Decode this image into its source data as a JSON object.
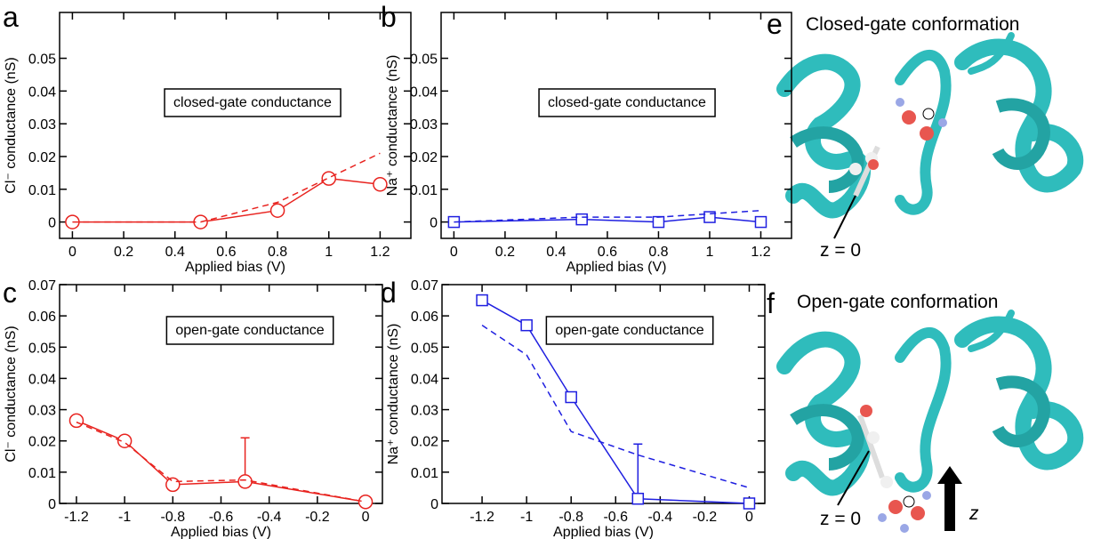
{
  "chart_data": [
    {
      "type": "line",
      "panel": "a",
      "xlabel": "Applied bias (V)",
      "ylabel": "Cl⁻ conductance (nS)",
      "annotation": "closed-gate conductance",
      "xlim": [
        -0.05,
        1.32
      ],
      "ylim": [
        -0.005,
        0.064
      ],
      "xticks": [
        0,
        0.2,
        0.4,
        0.6,
        0.8,
        1,
        1.2
      ],
      "yticks": [
        0,
        0.01,
        0.02,
        0.03,
        0.04,
        0.05
      ],
      "series": [
        {
          "color": "#e8231f",
          "dashed": false,
          "marker": "circle",
          "x": [
            0,
            0.5,
            0.8,
            1,
            1.2
          ],
          "values": [
            0,
            0,
            0.0035,
            0.0133,
            0.0115
          ]
        },
        {
          "color": "#e8231f",
          "dashed": true,
          "marker": null,
          "x": [
            0,
            0.5,
            0.8,
            1.2
          ],
          "values": [
            0,
            0,
            0.006,
            0.021
          ]
        }
      ]
    },
    {
      "type": "line",
      "panel": "b",
      "xlabel": "Applied bias (V)",
      "ylabel": "Na⁺ conductance (nS)",
      "annotation": "closed-gate conductance",
      "xlim": [
        -0.05,
        1.32
      ],
      "ylim": [
        -0.005,
        0.064
      ],
      "xticks": [
        0,
        0.2,
        0.4,
        0.6,
        0.8,
        1,
        1.2
      ],
      "yticks": [
        0,
        0.01,
        0.02,
        0.03,
        0.04,
        0.05
      ],
      "series": [
        {
          "color": "#1f1fe0",
          "dashed": false,
          "marker": "square",
          "x": [
            0,
            0.5,
            0.8,
            1,
            1.2
          ],
          "values": [
            0,
            0.0008,
            0,
            0.0015,
            0
          ]
        },
        {
          "color": "#1f1fe0",
          "dashed": true,
          "marker": null,
          "x": [
            0,
            0.5,
            0.8,
            1,
            1.2
          ],
          "values": [
            0,
            0.0015,
            0.0015,
            0.0025,
            0.0035
          ]
        }
      ]
    },
    {
      "type": "line",
      "panel": "c",
      "xlabel": "Applied bias (V)",
      "ylabel": "Cl⁻ conductance (nS)",
      "annotation": "open-gate conductance",
      "xlim": [
        -1.27,
        0.07
      ],
      "ylim": [
        0,
        0.07
      ],
      "xticks": [
        -1.2,
        -1,
        -0.8,
        -0.6,
        -0.4,
        -0.2,
        0
      ],
      "yticks": [
        0,
        0.01,
        0.02,
        0.03,
        0.04,
        0.05,
        0.06,
        0.07
      ],
      "series": [
        {
          "color": "#e8231f",
          "dashed": false,
          "marker": "circle",
          "x": [
            -1.2,
            -1,
            -0.8,
            -0.5,
            0
          ],
          "values": [
            0.0265,
            0.02,
            0.006,
            0.007,
            0.0005
          ],
          "errors": [
            null,
            null,
            null,
            0.014,
            null
          ]
        },
        {
          "color": "#e8231f",
          "dashed": true,
          "marker": null,
          "x": [
            -1.2,
            -1,
            -0.8,
            -0.5,
            0
          ],
          "values": [
            0.026,
            0.0195,
            0.007,
            0.0075,
            0.0005
          ]
        }
      ]
    },
    {
      "type": "line",
      "panel": "d",
      "xlabel": "Applied bias (V)",
      "ylabel": "Na⁺ conductance (nS)",
      "annotation": "open-gate conductance",
      "xlim": [
        -1.38,
        0.07
      ],
      "ylim": [
        0,
        0.07
      ],
      "xticks": [
        -1.2,
        -1,
        -0.8,
        -0.6,
        -0.4,
        -0.2,
        0
      ],
      "yticks": [
        0,
        0.01,
        0.02,
        0.03,
        0.04,
        0.05,
        0.06,
        0.07
      ],
      "series": [
        {
          "color": "#1f1fe0",
          "dashed": false,
          "marker": "square",
          "x": [
            -1.2,
            -1,
            -0.8,
            -0.5,
            0
          ],
          "values": [
            0.065,
            0.057,
            0.034,
            0.0015,
            0
          ],
          "errors": [
            null,
            null,
            null,
            0.0175,
            null
          ]
        },
        {
          "color": "#1f1fe0",
          "dashed": true,
          "marker": null,
          "x": [
            -1.2,
            -1,
            -0.8,
            -0.5,
            0
          ],
          "values": [
            0.057,
            0.0475,
            0.023,
            0.0155,
            0.005
          ]
        }
      ]
    }
  ],
  "images": [
    {
      "panel": "e",
      "title": "Closed-gate conformation",
      "z_label": "z = 0"
    },
    {
      "panel": "f",
      "title": "Open-gate conformation",
      "z_label": "z = 0",
      "axis_label": "z"
    }
  ]
}
